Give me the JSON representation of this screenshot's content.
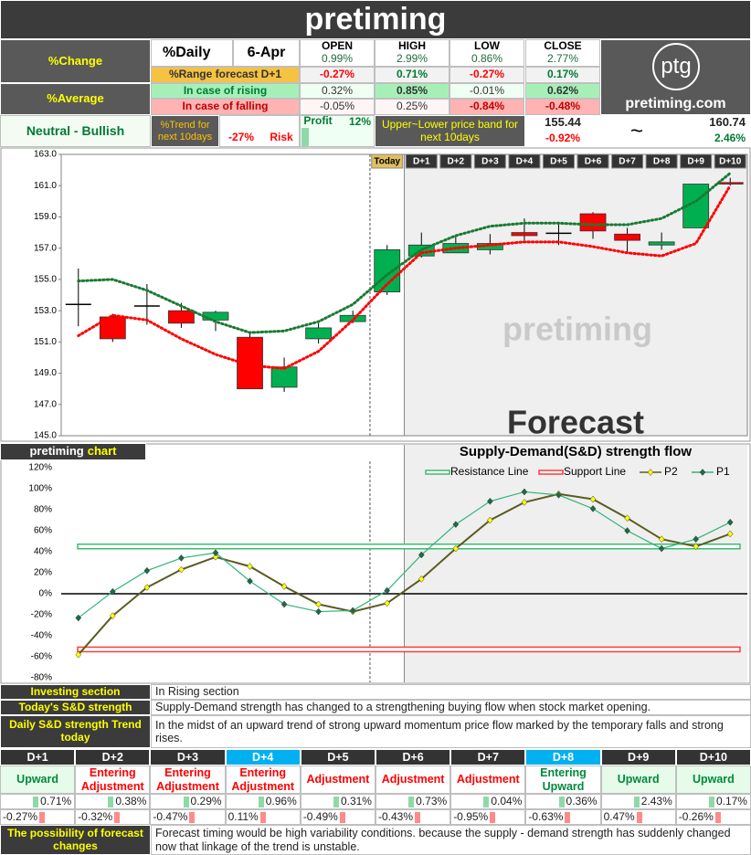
{
  "header": {
    "title": "pretiming"
  },
  "summary": {
    "change_label": "%Change",
    "daily_label": "%Daily",
    "date": "6-Apr",
    "columns": [
      "OPEN",
      "HIGH",
      "LOW",
      "CLOSE"
    ],
    "daily": [
      "0.99%",
      "2.99%",
      "0.86%",
      "2.77%"
    ],
    "range_label": "%Range forecast D+1",
    "range": [
      "-0.27%",
      "0.71%",
      "-0.27%",
      "0.17%"
    ],
    "average_label": "%Average",
    "rising_label": "In case of rising",
    "rising": [
      "0.32%",
      "0.85%",
      "-0.01%",
      "0.62%"
    ],
    "falling_label": "In case of falling",
    "falling": [
      "-0.05%",
      "0.25%",
      "-0.84%",
      "-0.48%"
    ]
  },
  "logo": {
    "mark": "ptg",
    "site": "pretiming.com"
  },
  "trend": {
    "outlook": "Neutral - Bullish",
    "label": "%Trend for next 10days",
    "risk_value": "-27%",
    "risk_label": "Risk",
    "profit_label": "Profit",
    "profit_value": "12%",
    "band_label": "Upper~Lower price band for next 10days",
    "lower": "155.44",
    "lower_change": "-0.92%",
    "separator": "~",
    "upper": "160.74",
    "upper_change": "2.46%"
  },
  "chart_data": [
    {
      "type": "candlestick",
      "categories": [
        null,
        null,
        null,
        null,
        null,
        null,
        null,
        null,
        null,
        "Today",
        "D+1",
        "D+2",
        "D+3",
        "D+4",
        "D+5",
        "D+6",
        "D+7",
        "D+8",
        "D+9",
        "D+10"
      ],
      "open": [
        153.4,
        152.6,
        153.3,
        153.0,
        152.4,
        151.3,
        148.1,
        151.2,
        152.3,
        154.2,
        156.5,
        156.7,
        156.9,
        158.0,
        157.95,
        159.2,
        157.9,
        157.2,
        158.3,
        161.2
      ],
      "high": [
        155.7,
        152.8,
        154.7,
        153.5,
        153.0,
        151.6,
        150.0,
        152.2,
        153.0,
        157.2,
        158.0,
        157.8,
        157.9,
        158.9,
        158.6,
        159.3,
        158.3,
        158.0,
        161.1,
        161.5
      ],
      "low": [
        152.0,
        151.0,
        152.1,
        151.9,
        151.7,
        148.0,
        147.8,
        150.9,
        152.2,
        154.0,
        156.4,
        156.7,
        156.6,
        157.5,
        157.2,
        157.6,
        156.7,
        156.9,
        158.3,
        161.0
      ],
      "close": [
        153.4,
        151.2,
        153.3,
        152.2,
        152.9,
        148.0,
        149.4,
        151.9,
        152.7,
        156.9,
        157.2,
        157.3,
        157.3,
        157.8,
        157.95,
        158.1,
        157.5,
        157.4,
        161.1,
        161.1
      ],
      "up_color": "#00b050",
      "down_color": "#ff0000",
      "upper_band": {
        "color": "#1a7a32",
        "values": [
          154.9,
          155.0,
          154.3,
          153.3,
          152.3,
          151.6,
          151.7,
          152.3,
          153.4,
          155.3,
          156.9,
          157.8,
          158.4,
          158.6,
          158.6,
          158.5,
          158.5,
          158.9,
          160.0,
          161.8
        ]
      },
      "lower_band": {
        "color": "#ff0000",
        "values": [
          151.4,
          152.7,
          152.4,
          151.2,
          150.2,
          149.5,
          149.3,
          150.4,
          152.4,
          154.7,
          156.7,
          157.0,
          157.2,
          157.4,
          157.4,
          157.1,
          156.7,
          156.5,
          157.3,
          161.0
        ]
      },
      "ylim": [
        145,
        163
      ],
      "yticks": [
        {
          "value": 145,
          "label": "145.0"
        },
        {
          "value": 147,
          "label": "147.0"
        },
        {
          "value": 149,
          "label": "149.0"
        },
        {
          "value": 151,
          "label": "151.0"
        },
        {
          "value": 153,
          "label": "153.0"
        },
        {
          "value": 155,
          "label": "155.0"
        },
        {
          "value": 157,
          "label": "157.0"
        },
        {
          "value": 159,
          "label": "159.0"
        },
        {
          "value": 161,
          "label": "161.0"
        },
        {
          "value": 163,
          "label": "163.0"
        }
      ],
      "watermark": "pretiming",
      "forecast_label": "Forecast"
    },
    {
      "type": "line",
      "title": "Supply-Demand(S&D) strength flow",
      "badge": "pretiming",
      "badge_accent": "chart",
      "categories": [
        null,
        null,
        null,
        null,
        null,
        null,
        null,
        null,
        null,
        null,
        null,
        null,
        null,
        null,
        null,
        null,
        null,
        null,
        null,
        null
      ],
      "series": [
        {
          "name": "Resistance Line",
          "color": "#3dbb6f",
          "value": 45
        },
        {
          "name": "Support Line",
          "color": "#ff3b3b",
          "value": -53
        },
        {
          "name": "P2",
          "color": "#5b5b22",
          "marker_color": "#ffff00",
          "values": [
            -58,
            -21,
            6,
            23,
            35,
            26,
            7,
            -10,
            -17,
            -9,
            14,
            43,
            70,
            87,
            95,
            90,
            72,
            52,
            45,
            57
          ]
        },
        {
          "name": "P1",
          "color": "#2fb37a",
          "marker_color": "#1e6b45",
          "values": [
            -23,
            2,
            22,
            34,
            39,
            12,
            -10,
            -17,
            -16,
            3,
            37,
            66,
            88,
            97,
            94,
            81,
            60,
            43,
            52,
            68
          ]
        }
      ],
      "ylim": [
        -80,
        120
      ],
      "yticks": [
        {
          "value": -80,
          "label": "-80%"
        },
        {
          "value": -60,
          "label": "-60%"
        },
        {
          "value": -40,
          "label": "-40%"
        },
        {
          "value": -20,
          "label": "-20%"
        },
        {
          "value": 0,
          "label": "0%"
        },
        {
          "value": 20,
          "label": "20%"
        },
        {
          "value": 40,
          "label": "40%"
        },
        {
          "value": 60,
          "label": "60%"
        },
        {
          "value": 80,
          "label": "80%"
        },
        {
          "value": 100,
          "label": "100%"
        },
        {
          "value": 120,
          "label": "120%"
        }
      ]
    }
  ],
  "sections": [
    {
      "label": "Investing section",
      "text": "In Rising section"
    },
    {
      "label": "Today's S&D strength",
      "text": "Supply-Demand strength has changed to a strengthening buying flow when stock market opening."
    },
    {
      "label": "Daily S&D strength Trend today",
      "text": "In the midst of an upward trend of strong upward momentum price flow marked by the temporary falls and strong rises."
    }
  ],
  "forecast": {
    "days": [
      "D+1",
      "D+2",
      "D+3",
      "D+4",
      "D+5",
      "D+6",
      "D+7",
      "D+8",
      "D+9",
      "D+10"
    ],
    "highlight": [
      3,
      7
    ],
    "signals": [
      "Upward",
      "Entering Adjustment",
      "Entering Adjustment",
      "Entering Adjustment",
      "Adjustment",
      "Adjustment",
      "Adjustment",
      "Entering Upward",
      "Upward",
      "Upward"
    ],
    "up": [
      "0.71%",
      "0.38%",
      "0.29%",
      "0.96%",
      "0.31%",
      "0.73%",
      "0.04%",
      "0.36%",
      "2.43%",
      "0.17%"
    ],
    "down": [
      "-0.27%",
      "-0.32%",
      "-0.47%",
      "0.11%",
      "-0.49%",
      "-0.43%",
      "-0.95%",
      "-0.63%",
      "0.47%",
      "-0.26%"
    ],
    "note_label": "The possibility of forecast changes",
    "note": "Forecast timing would be high variability conditions. because the supply - demand strength has suddenly changed now that linkage of the trend is unstable."
  }
}
